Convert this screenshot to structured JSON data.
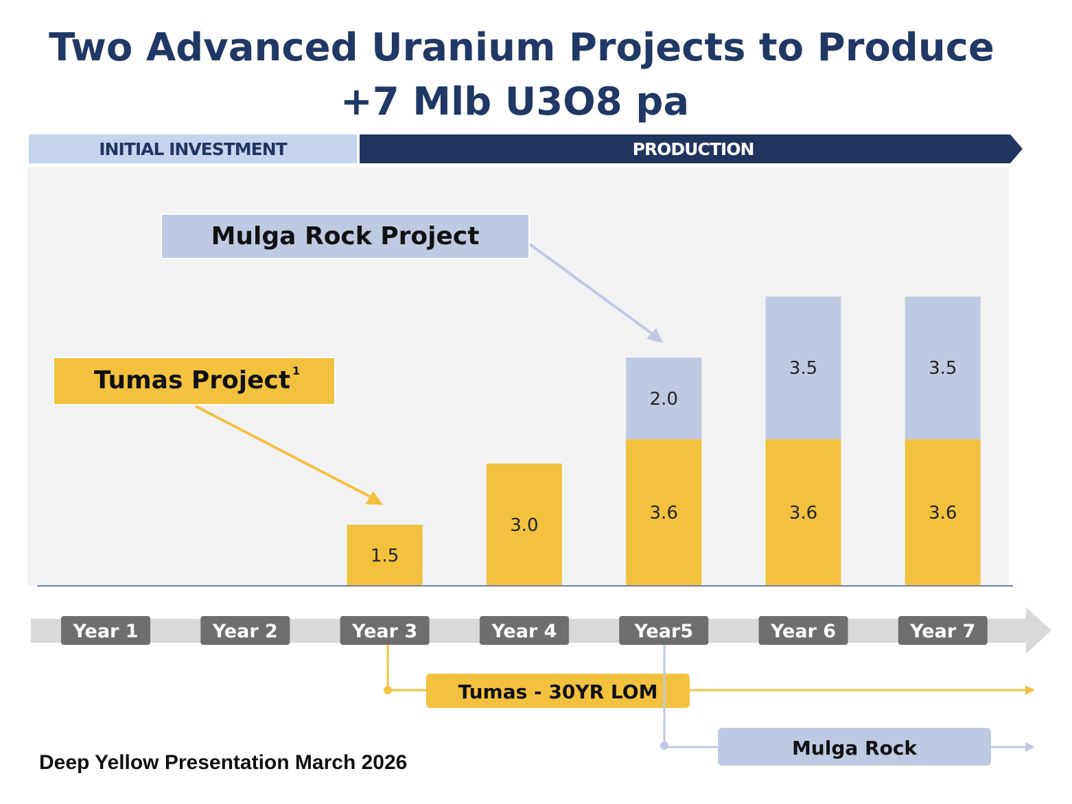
{
  "chart_data": {
    "type": "bar",
    "stacked": true,
    "title": "Two Advanced Uranium Projects to Produce",
    "subtitle": "+7 Mlb U3O8 pa",
    "categories": [
      "Year 1",
      "Year 2",
      "Year 3",
      "Year 4",
      "Year5",
      "Year 6",
      "Year 7"
    ],
    "series": [
      {
        "name": "Tumas Project",
        "color": "#F2C13E",
        "values": [
          0,
          0,
          1.5,
          3.0,
          3.6,
          3.6,
          3.6
        ]
      },
      {
        "name": "Mulga Rock Project",
        "color": "#BFC9E3",
        "values": [
          0,
          0,
          0,
          0,
          2.0,
          3.5,
          3.5
        ]
      }
    ],
    "value_labels": {
      "tumas": [
        "",
        "",
        "1.5",
        "3.0",
        "3.6",
        "3.6",
        "3.6"
      ],
      "mulga": [
        "",
        "",
        "",
        "",
        "2.0",
        "3.5",
        "3.5"
      ]
    },
    "xlabel": "",
    "ylabel": "",
    "ylim": [
      0,
      7.5
    ],
    "grid": false,
    "annotations": {
      "tumas_callout": "Tumas Project",
      "tumas_footnote": "1",
      "mulga_callout": "Mulga Rock Project"
    }
  },
  "phases": {
    "initial": "INITIAL INVESTMENT",
    "production": "PRODUCTION"
  },
  "timeline": {
    "tumas": "Tumas - 30YR LOM",
    "mulga": "Mulga Rock"
  },
  "footer": "Deep Yellow Presentation March 2026",
  "colors": {
    "navy": "#1F3560",
    "light_blue": "#C5D5EE",
    "gold": "#F2C13E",
    "lavender": "#BFC9E3",
    "grey_pill": "#6E6E6E",
    "plot_bg": "#F2F2F2"
  }
}
